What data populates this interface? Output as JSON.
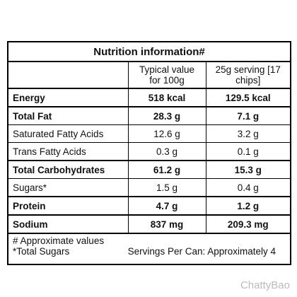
{
  "title": "Nutrition information#",
  "columns": [
    "Typical value for 100g",
    "25g serving [17 chips]"
  ],
  "rows": [
    {
      "label": "Energy",
      "per_100g": "518 kcal",
      "per_serving": "129.5 kcal",
      "bold": true
    },
    {
      "label": "Total Fat",
      "per_100g": "28.3 g",
      "per_serving": "7.1 g",
      "bold": true
    },
    {
      "label": "Saturated Fatty Acids",
      "per_100g": "12.6 g",
      "per_serving": "3.2 g",
      "bold": false
    },
    {
      "label": "Trans Fatty Acids",
      "per_100g": "0.3 g",
      "per_serving": "0.1 g",
      "bold": false
    },
    {
      "label": "Total Carbohydrates",
      "per_100g": "61.2 g",
      "per_serving": "15.3 g",
      "bold": true
    },
    {
      "label": "Sugars*",
      "per_100g": "1.5 g",
      "per_serving": "0.4 g",
      "bold": false
    },
    {
      "label": "Protein",
      "per_100g": "4.7 g",
      "per_serving": "1.2 g",
      "bold": true
    },
    {
      "label": "Sodium",
      "per_100g": "837 mg",
      "per_serving": "209.3 mg",
      "bold": true
    }
  ],
  "footnotes": [
    "# Approximate values",
    "*Total Sugars"
  ],
  "servings_note": "Servings Per Can: Approximately 4",
  "watermark": "ChattyBao"
}
